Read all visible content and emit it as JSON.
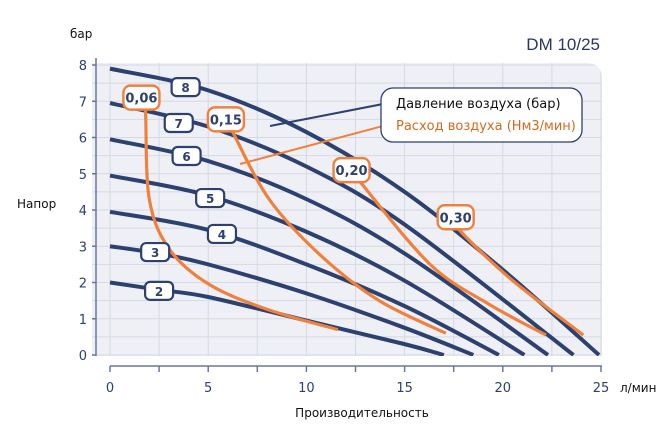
{
  "chart_data": {
    "type": "line",
    "title": "DM 10/25",
    "xlabel": "Производительность",
    "xunit": "л/мин",
    "ylabel": "Напор",
    "yunit": "бар",
    "xlim": [
      0,
      25
    ],
    "ylim": [
      0,
      8
    ],
    "xticks": [
      "0",
      "5",
      "10",
      "15",
      "20",
      "25"
    ],
    "yticks": [
      "0",
      "1",
      "2",
      "3",
      "4",
      "5",
      "6",
      "7",
      "8"
    ],
    "grid": true,
    "legend": {
      "placement": "top-right",
      "pressure": "Давление воздуха (бар)",
      "airflow": "Расход воздуха (Нм3/мин)"
    },
    "colors": {
      "pressure": "#2c4170",
      "airflow": "#f0803c",
      "plot_bg": "#eef0f5",
      "grid": "#d6d9e2"
    },
    "pressure_curves": [
      {
        "label": "2",
        "label_at": [
          2.5,
          1.77
        ],
        "points": [
          [
            0,
            2
          ],
          [
            2.5,
            1.8
          ],
          [
            5,
            1.6
          ],
          [
            10,
            0.95
          ],
          [
            15,
            0.3
          ],
          [
            17,
            0
          ]
        ]
      },
      {
        "label": "3",
        "label_at": [
          2.3,
          2.84
        ],
        "points": [
          [
            0,
            3
          ],
          [
            2.5,
            2.8
          ],
          [
            5,
            2.5
          ],
          [
            10,
            1.7
          ],
          [
            15,
            0.75
          ],
          [
            18.5,
            0
          ]
        ]
      },
      {
        "label": "4",
        "label_at": [
          5.7,
          3.34
        ],
        "points": [
          [
            0,
            3.95
          ],
          [
            5,
            3.45
          ],
          [
            10,
            2.5
          ],
          [
            15,
            1.35
          ],
          [
            19.8,
            0
          ]
        ]
      },
      {
        "label": "5",
        "label_at": [
          5.1,
          4.33
        ],
        "points": [
          [
            0,
            4.95
          ],
          [
            5,
            4.4
          ],
          [
            10,
            3.4
          ],
          [
            15,
            2.05
          ],
          [
            21.1,
            0
          ]
        ]
      },
      {
        "label": "6",
        "label_at": [
          3.9,
          5.49
        ],
        "points": [
          [
            0,
            5.95
          ],
          [
            5,
            5.35
          ],
          [
            10,
            4.3
          ],
          [
            15,
            2.8
          ],
          [
            22.3,
            0
          ]
        ]
      },
      {
        "label": "7",
        "label_at": [
          3.5,
          6.4
        ],
        "points": [
          [
            0,
            6.95
          ],
          [
            5,
            6.3
          ],
          [
            10,
            5.2
          ],
          [
            15,
            3.6
          ],
          [
            23.6,
            0
          ]
        ]
      },
      {
        "label": "8",
        "label_at": [
          3.85,
          7.39
        ],
        "points": [
          [
            0,
            7.9
          ],
          [
            5,
            7.3
          ],
          [
            10,
            6.15
          ],
          [
            15,
            4.5
          ],
          [
            20,
            2.35
          ],
          [
            24.9,
            0
          ]
        ]
      }
    ],
    "airflow_curves": [
      {
        "label": "0,06",
        "label_at": [
          1.6,
          7.1
        ],
        "points": [
          [
            1.8,
            6.8
          ],
          [
            2.0,
            4.3
          ],
          [
            3.05,
            2.9
          ],
          [
            5.1,
            1.93
          ],
          [
            8.1,
            1.24
          ],
          [
            11.6,
            0.7
          ]
        ]
      },
      {
        "label": "0,15",
        "label_at": [
          5.9,
          6.5
        ],
        "points": [
          [
            6.2,
            6.2
          ],
          [
            8.1,
            4.3
          ],
          [
            10.7,
            2.76
          ],
          [
            13.7,
            1.5
          ],
          [
            17.1,
            0.6
          ]
        ]
      },
      {
        "label": "0,20",
        "label_at": [
          12.3,
          5.1
        ],
        "points": [
          [
            12.7,
            4.8
          ],
          [
            16.3,
            2.5
          ],
          [
            19.3,
            1.4
          ],
          [
            22.2,
            0.55
          ]
        ]
      },
      {
        "label": "0,30",
        "label_at": [
          17.6,
          3.8
        ],
        "points": [
          [
            17.7,
            3.5
          ],
          [
            20.4,
            2.1
          ],
          [
            24.1,
            0.55
          ]
        ]
      }
    ]
  }
}
